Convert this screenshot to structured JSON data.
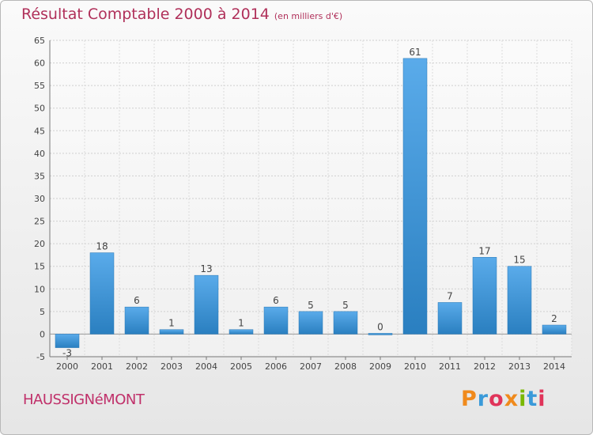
{
  "chart_data": {
    "type": "bar",
    "title": "Résultat Comptable 2000 à 2014",
    "subtitle": "(en milliers d'€)",
    "categories": [
      "2000",
      "2001",
      "2002",
      "2003",
      "2004",
      "2005",
      "2006",
      "2007",
      "2008",
      "2009",
      "2010",
      "2011",
      "2012",
      "2013",
      "2014"
    ],
    "values": [
      -3,
      18,
      6,
      1,
      13,
      1,
      6,
      5,
      5,
      0,
      61,
      7,
      17,
      15,
      2
    ],
    "yticks": [
      -5,
      0,
      5,
      10,
      15,
      20,
      25,
      30,
      35,
      40,
      45,
      50,
      55,
      60,
      65
    ],
    "ylim": [
      -5,
      65
    ],
    "xlabel": "",
    "ylabel": "",
    "grid": true,
    "bar_color": "#3c93d4",
    "bar_color_light": "#5aabea"
  },
  "footer": {
    "commune": "HAUSSIGNéMONT",
    "logo": "Proxiti",
    "logo_colors": [
      "#f08a1c",
      "#3a9ad9",
      "#e0345a",
      "#f08a1c",
      "#7ab800",
      "#3a9ad9",
      "#e0345a"
    ]
  },
  "colors": {
    "title": "#b0305a",
    "commune": "#c0306a"
  }
}
